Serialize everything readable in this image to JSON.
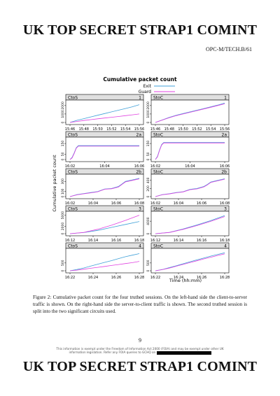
{
  "document": {
    "classification_top": "UK TOP SECRET STRAP1 COMINT",
    "classification_bottom": "UK TOP SECRET STRAP1 COMINT",
    "reference": "OPC-M/TECH.B/61",
    "caption": "Figure 2: Cumulative packet count for the four truthed sessions. On the left-hand side the client-to-server traffic is shown. On the right-hand side the server-to-client traffic is shown. The second truthed session is split into the two significant circuits used.",
    "page_number": "9",
    "footer_line1": "This information is exempt under the Freedom of Information Act 2000 (FOIA) and may be exempt under other UK",
    "footer_line2": "information legislation. Refer any FOIA queries to GCHQ on"
  },
  "chart_data": {
    "type": "line",
    "title": "Cumulative packet count",
    "xlabel": "Time (hh:mm)",
    "ylabel": "Cumulative packet count",
    "legend": {
      "placement": "top-right",
      "entries": [
        {
          "name": "Exit",
          "color": "#3fa0d8"
        },
        {
          "name": "Guard",
          "color": "#e040e0"
        }
      ]
    },
    "panels": [
      {
        "session": "1",
        "direction": "CtoS",
        "x_ticks": [
          "15:46",
          "15:48",
          "15:50",
          "15:52",
          "15:54",
          "15:56"
        ],
        "y_ticks": [
          "0",
          "1000",
          "2000"
        ],
        "ylim": [
          0,
          2400
        ],
        "series": [
          {
            "name": "Exit",
            "x": [
              0,
              0.1,
              0.2,
              0.3,
              0.4,
              0.5,
              0.6,
              0.7,
              0.8,
              0.9,
              1.0
            ],
            "y": [
              0,
              250,
              450,
              650,
              850,
              1050,
              1250,
              1450,
              1650,
              1850,
              2100
            ]
          },
          {
            "name": "Guard",
            "x": [
              0,
              0.1,
              0.2,
              0.3,
              0.4,
              0.5,
              0.6,
              0.7,
              0.8,
              0.9,
              1.0
            ],
            "y": [
              0,
              120,
              230,
              330,
              430,
              520,
              610,
              700,
              800,
              900,
              1000
            ]
          }
        ]
      },
      {
        "session": "1",
        "direction": "StoC",
        "x_ticks": [
          "15:46",
          "15:48",
          "15:50",
          "15:52",
          "15:54",
          "15:56"
        ],
        "y_ticks": [
          "0",
          "1000",
          "2000"
        ],
        "ylim": [
          0,
          2400
        ],
        "series": [
          {
            "name": "Exit",
            "x": [
              0,
              0.1,
              0.2,
              0.3,
              0.4,
              0.5,
              0.6,
              0.7,
              0.8,
              0.9,
              1.0
            ],
            "y": [
              0,
              300,
              600,
              850,
              1050,
              1250,
              1450,
              1650,
              1850,
              2050,
              2300
            ]
          },
          {
            "name": "Guard",
            "x": [
              0,
              0.1,
              0.2,
              0.3,
              0.4,
              0.5,
              0.6,
              0.7,
              0.8,
              0.9,
              1.0
            ],
            "y": [
              0,
              280,
              560,
              800,
              1000,
              1200,
              1400,
              1600,
              1800,
              2000,
              2200
            ]
          }
        ]
      },
      {
        "session": "2a",
        "direction": "CtoS",
        "x_ticks": [
          "16:02",
          "16:04",
          "16:06"
        ],
        "y_ticks": [
          "0",
          "50",
          "150"
        ],
        "ylim": [
          0,
          190
        ],
        "series": [
          {
            "name": "Exit",
            "x": [
              0,
              0.03,
              0.06,
              0.09,
              0.12,
              1.0
            ],
            "y": [
              0,
              20,
              60,
              110,
              130,
              130
            ]
          },
          {
            "name": "Guard",
            "x": [
              0,
              0.03,
              0.06,
              0.09,
              0.12,
              1.0
            ],
            "y": [
              0,
              15,
              55,
              105,
              125,
              125
            ]
          }
        ]
      },
      {
        "session": "2a",
        "direction": "StoC",
        "x_ticks": [
          "16:02",
          "16:04",
          "16:06"
        ],
        "y_ticks": [
          "0",
          "50",
          "150"
        ],
        "ylim": [
          0,
          190
        ],
        "series": [
          {
            "name": "Exit",
            "x": [
              0,
              0.03,
              0.06,
              0.09,
              0.12,
              1.0
            ],
            "y": [
              0,
              30,
              90,
              140,
              160,
              160
            ]
          },
          {
            "name": "Guard",
            "x": [
              0,
              0.03,
              0.06,
              0.09,
              0.12,
              1.0
            ],
            "y": [
              0,
              25,
              85,
              135,
              155,
              155
            ]
          }
        ]
      },
      {
        "session": "2b",
        "direction": "CtoS",
        "x_ticks": [
          "16:02",
          "16:04",
          "16:06",
          "16:08"
        ],
        "y_ticks": [
          "0",
          "100",
          "300"
        ],
        "ylim": [
          0,
          400
        ],
        "series": [
          {
            "name": "Exit",
            "x": [
              0,
              0.1,
              0.2,
              0.3,
              0.4,
              0.5,
              0.6,
              0.7,
              0.75,
              0.8,
              0.9,
              1.0
            ],
            "y": [
              0,
              40,
              60,
              80,
              100,
              150,
              160,
              200,
              250,
              300,
              330,
              360
            ]
          },
          {
            "name": "Guard",
            "x": [
              0,
              0.1,
              0.2,
              0.3,
              0.4,
              0.5,
              0.6,
              0.7,
              0.75,
              0.8,
              0.9,
              1.0
            ],
            "y": [
              0,
              35,
              55,
              75,
              95,
              145,
              155,
              190,
              240,
              290,
              320,
              350
            ]
          }
        ]
      },
      {
        "session": "2b",
        "direction": "StoC",
        "x_ticks": [
          "16:02",
          "16:04",
          "16:06",
          "16:08"
        ],
        "y_ticks": [
          "0",
          "200",
          "400"
        ],
        "ylim": [
          0,
          500
        ],
        "series": [
          {
            "name": "Exit",
            "x": [
              0,
              0.1,
              0.2,
              0.3,
              0.4,
              0.5,
              0.6,
              0.7,
              0.75,
              0.8,
              0.9,
              1.0
            ],
            "y": [
              0,
              50,
              70,
              100,
              120,
              180,
              200,
              250,
              300,
              360,
              400,
              440
            ]
          },
          {
            "name": "Guard",
            "x": [
              0,
              0.1,
              0.2,
              0.3,
              0.4,
              0.5,
              0.6,
              0.7,
              0.75,
              0.8,
              0.9,
              1.0
            ],
            "y": [
              0,
              45,
              65,
              95,
              115,
              170,
              190,
              240,
              290,
              350,
              390,
              430
            ]
          }
        ]
      },
      {
        "session": "3",
        "direction": "CtoS",
        "x_ticks": [
          "16:12",
          "16:14",
          "16:16",
          "16:18"
        ],
        "y_ticks": [
          "0",
          "2000",
          "5000"
        ],
        "ylim": [
          0,
          5500
        ],
        "series": [
          {
            "name": "Exit",
            "x": [
              0,
              0.2,
              0.4,
              0.6,
              0.8,
              1.0
            ],
            "y": [
              0,
              300,
              900,
              1700,
              2500,
              3300
            ]
          },
          {
            "name": "Guard",
            "x": [
              0,
              0.2,
              0.4,
              0.6,
              0.8,
              1.0
            ],
            "y": [
              0,
              350,
              1200,
              2300,
              3600,
              5000
            ]
          }
        ]
      },
      {
        "session": "3",
        "direction": "StoC",
        "x_ticks": [
          "16:12",
          "16:14",
          "16:16",
          "16:18"
        ],
        "y_ticks": [
          "0",
          "4000"
        ],
        "ylim": [
          0,
          6500
        ],
        "series": [
          {
            "name": "Exit",
            "x": [
              0,
              0.2,
              0.4,
              0.6,
              0.8,
              1.0
            ],
            "y": [
              0,
              400,
              1500,
              2800,
              4200,
              5800
            ]
          },
          {
            "name": "Guard",
            "x": [
              0,
              0.2,
              0.4,
              0.6,
              0.8,
              1.0
            ],
            "y": [
              0,
              380,
              1400,
              2600,
              4000,
              5500
            ]
          }
        ]
      },
      {
        "session": "4",
        "direction": "CtoS",
        "x_ticks": [
          "16:22",
          "16:24",
          "16:26",
          "16:28"
        ],
        "y_ticks": [
          "0",
          "500"
        ],
        "ylim": [
          0,
          1300
        ],
        "series": [
          {
            "name": "Exit",
            "x": [
              0,
              0.1,
              0.2,
              0.3,
              0.4,
              0.5,
              0.6,
              0.7,
              0.8,
              0.9,
              1.0
            ],
            "y": [
              0,
              80,
              180,
              300,
              420,
              540,
              650,
              780,
              900,
              1000,
              1100
            ]
          },
          {
            "name": "Guard",
            "x": [
              0,
              0.1,
              0.2,
              0.3,
              0.4,
              0.5,
              0.6,
              0.7,
              0.8,
              0.9,
              1.0
            ],
            "y": [
              0,
              40,
              100,
              160,
              220,
              280,
              340,
              400,
              460,
              520,
              600
            ]
          }
        ]
      },
      {
        "session": "4",
        "direction": "StoC",
        "x_ticks": [
          "16:22",
          "16:24",
          "16:26",
          "16:28"
        ],
        "y_ticks": [
          "0",
          "500"
        ],
        "ylim": [
          0,
          1300
        ],
        "series": [
          {
            "name": "Exit",
            "x": [
              0,
              0.1,
              0.2,
              0.3,
              0.4,
              0.5,
              0.6,
              0.7,
              0.8,
              0.9,
              1.0
            ],
            "y": [
              0,
              80,
              200,
              320,
              450,
              580,
              700,
              820,
              940,
              1050,
              1150
            ]
          },
          {
            "name": "Guard",
            "x": [
              0,
              0.1,
              0.2,
              0.3,
              0.4,
              0.5,
              0.6,
              0.7,
              0.8,
              0.9,
              1.0
            ],
            "y": [
              0,
              70,
              170,
              290,
              410,
              530,
              640,
              760,
              870,
              980,
              1080
            ]
          }
        ]
      }
    ]
  }
}
